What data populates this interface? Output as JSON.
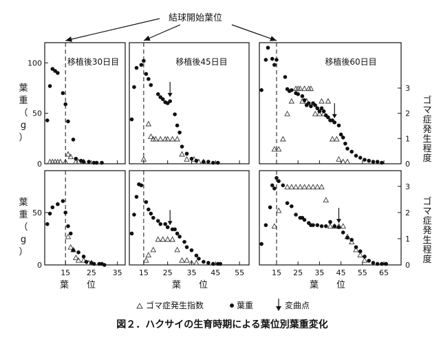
{
  "chart_data": {
    "type": "scatter",
    "title": "図２．ハクサイの生育時期による葉位別葉重変化",
    "annotation": "結球開始葉位",
    "y_left_label": "葉重（g）",
    "y_right_label": "ゴマ症発生程度",
    "x_label": "葉　　位",
    "legend": {
      "triangle": "ゴマ症発生指数",
      "dot": "葉重",
      "arrow": "変曲点",
      "placement": "bottom"
    },
    "panels": [
      {
        "id": "top-30",
        "label": "移植後30日目",
        "row": "top",
        "col": 0,
        "xlim": [
          7,
          38
        ],
        "ylim": [
          0,
          120
        ],
        "y2lim": [
          0,
          4.8
        ],
        "yticks": [
          0,
          50,
          100
        ],
        "xticks": [
          15,
          25,
          35
        ],
        "xtick_labels_shown": false,
        "heading_start": 15,
        "inflection_x": null,
        "weight_x": [
          8,
          9,
          10,
          11,
          12,
          14,
          15,
          16,
          18,
          19,
          21,
          22,
          24,
          26,
          27,
          29
        ],
        "weight_y": [
          43,
          77,
          94,
          92,
          90,
          70,
          59,
          42,
          24,
          5,
          3,
          2,
          2,
          1,
          1,
          1
        ],
        "index_x": [
          9,
          10,
          11,
          12,
          13,
          15,
          16,
          17,
          19,
          20,
          22
        ],
        "index_y": [
          0,
          0,
          0,
          0,
          0,
          0,
          0.3,
          0.2,
          0,
          0,
          0
        ]
      },
      {
        "id": "top-45",
        "label": "移植後45日目",
        "row": "top",
        "col": 1,
        "xlim": [
          9,
          59
        ],
        "ylim": [
          0,
          120
        ],
        "y2lim": [
          0,
          4.8
        ],
        "yticks": [
          0,
          50,
          100
        ],
        "xticks": [
          15,
          25,
          35,
          45,
          55
        ],
        "xtick_labels_shown": false,
        "heading_start": 15,
        "inflection_x": 26,
        "weight_x": [
          10,
          11,
          12,
          14,
          15,
          16,
          17,
          18,
          21,
          22,
          23,
          24,
          25,
          26,
          28,
          29,
          30,
          31,
          33,
          35,
          37,
          40,
          42,
          44,
          46
        ],
        "weight_y": [
          44,
          76,
          95,
          98,
          102,
          89,
          84,
          78,
          69,
          66,
          64,
          61,
          60,
          62,
          49,
          38,
          31,
          17,
          10,
          5,
          3,
          2,
          2,
          1,
          1
        ],
        "index_x": [
          15,
          17,
          18,
          19,
          20,
          22,
          24,
          25,
          27,
          29,
          31,
          33,
          36,
          38,
          40
        ],
        "index_y": [
          0.1,
          1.5,
          1.0,
          0.9,
          0.9,
          0.9,
          0.9,
          0.9,
          0.9,
          0.9,
          0.3,
          0.1,
          0.1,
          0,
          0
        ]
      },
      {
        "id": "top-60",
        "label": "移植後60日目",
        "row": "top",
        "col": 2,
        "xlim": [
          7,
          73
        ],
        "ylim": [
          0,
          120
        ],
        "y2lim": [
          0,
          4.8
        ],
        "yticks": [
          0,
          50,
          100
        ],
        "xticks": [
          15,
          25,
          35,
          45,
          55,
          65
        ],
        "xtick_labels_shown": false,
        "heading_start": 15,
        "inflection_x": 42,
        "weight_x": [
          8,
          10,
          11,
          13,
          14,
          15,
          19,
          20,
          21,
          22,
          24,
          25,
          27,
          28,
          29,
          30,
          31,
          32,
          33,
          34,
          35,
          36,
          37,
          38,
          39,
          40,
          41,
          42,
          44,
          45,
          46,
          47,
          48,
          50,
          52,
          54,
          56,
          58,
          60,
          62,
          64
        ],
        "weight_y": [
          73,
          103,
          115,
          104,
          98,
          103,
          86,
          74,
          72,
          73,
          70,
          69,
          67,
          63,
          58,
          60,
          57,
          60,
          58,
          55,
          52,
          55,
          52,
          48,
          46,
          43,
          43,
          41,
          38,
          29,
          26,
          20,
          15,
          12,
          8,
          6,
          4,
          3,
          2,
          2,
          1
        ],
        "index_x": [
          14,
          16,
          18,
          20,
          22,
          24,
          25,
          26,
          27,
          28,
          29,
          30,
          31,
          33,
          35,
          36,
          37,
          39,
          41,
          43,
          44,
          46,
          48
        ],
        "index_y": [
          0.5,
          0.5,
          0.9,
          1.9,
          2.4,
          2.9,
          2.9,
          2.9,
          2.4,
          2.9,
          2.4,
          2.9,
          2.9,
          1.9,
          1.9,
          2.4,
          1.9,
          2.4,
          0.9,
          0.9,
          0.1,
          0,
          0
        ]
      },
      {
        "id": "bottom-30",
        "row": "bottom",
        "col": 0,
        "xlim": [
          7,
          38
        ],
        "ylim": [
          0,
          90
        ],
        "y2lim": [
          0,
          3.6
        ],
        "yticks": [
          0,
          50
        ],
        "xticks": [
          15,
          25,
          35
        ],
        "xtick_labels_shown": true,
        "heading_start": 15,
        "inflection_x": null,
        "weight_x": [
          8,
          9,
          10,
          12,
          14,
          15,
          16,
          17,
          18,
          20,
          22,
          23,
          25,
          26,
          28,
          29,
          30
        ],
        "weight_y": [
          39,
          49,
          55,
          58,
          61,
          50,
          37,
          30,
          14,
          12,
          8,
          3,
          2,
          1,
          1,
          1,
          0
        ],
        "index_x": [
          16,
          17,
          18,
          19,
          20,
          22,
          24,
          25
        ],
        "index_y": [
          1.0,
          0.6,
          0.5,
          0.2,
          0.1,
          0.1,
          0,
          0
        ]
      },
      {
        "id": "bottom-45",
        "row": "bottom",
        "col": 1,
        "xlim": [
          9,
          59
        ],
        "ylim": [
          0,
          90
        ],
        "y2lim": [
          0,
          3.6
        ],
        "yticks": [
          0,
          50
        ],
        "xticks": [
          15,
          25,
          35,
          45,
          55
        ],
        "xtick_labels_shown": true,
        "heading_start": 15,
        "inflection_x": 26,
        "weight_x": [
          10,
          11,
          12,
          13,
          14,
          16,
          17,
          18,
          19,
          21,
          22,
          24,
          25,
          27,
          28,
          29,
          30,
          32,
          33,
          35,
          37,
          38,
          40,
          42,
          44,
          46,
          47
        ],
        "weight_y": [
          30,
          48,
          65,
          77,
          76,
          60,
          53,
          49,
          45,
          42,
          39,
          39,
          36,
          34,
          34,
          30,
          27,
          22,
          17,
          14,
          9,
          6,
          3,
          2,
          1,
          1,
          1
        ],
        "index_x": [
          16,
          17,
          19,
          21,
          23,
          25,
          27,
          29,
          31,
          33,
          35,
          37
        ],
        "index_y": [
          0.1,
          0.3,
          0.5,
          0.9,
          0.9,
          0.9,
          0.9,
          0.5,
          0.1,
          0.1,
          0,
          0
        ]
      },
      {
        "id": "bottom-60",
        "row": "bottom",
        "col": 2,
        "xlim": [
          7,
          73
        ],
        "ylim": [
          0,
          90
        ],
        "y2lim": [
          0,
          3.6
        ],
        "yticks": [
          0,
          50
        ],
        "xticks": [
          15,
          25,
          35,
          45,
          55,
          65
        ],
        "xtick_labels_shown": true,
        "heading_start": 15,
        "inflection_x": 44,
        "weight_x": [
          8,
          10,
          12,
          13,
          14,
          15,
          16,
          18,
          20,
          22,
          24,
          26,
          27,
          28,
          30,
          31,
          32,
          34,
          36,
          38,
          40,
          42,
          44,
          46,
          48,
          50,
          52,
          54,
          56,
          58,
          60,
          62,
          64,
          66
        ],
        "weight_y": [
          20,
          38,
          55,
          76,
          73,
          83,
          80,
          76,
          59,
          56,
          48,
          45,
          45,
          43,
          40,
          38,
          38,
          38,
          37,
          37,
          41,
          37,
          36,
          31,
          26,
          24,
          17,
          13,
          8,
          4,
          2,
          1,
          1,
          1
        ],
        "index_x": [
          14,
          16,
          20,
          22,
          24,
          26,
          28,
          30,
          32,
          34,
          36,
          38,
          40,
          42,
          44,
          46,
          48,
          50,
          52,
          54,
          56
        ],
        "index_y": [
          1.4,
          2.0,
          2.9,
          2.9,
          2.9,
          2.9,
          2.9,
          2.9,
          2.9,
          2.9,
          2.9,
          2.4,
          1.4,
          1.4,
          1.4,
          1.4,
          1.0,
          0.8,
          0.5,
          0.3,
          0.1
        ]
      }
    ]
  }
}
